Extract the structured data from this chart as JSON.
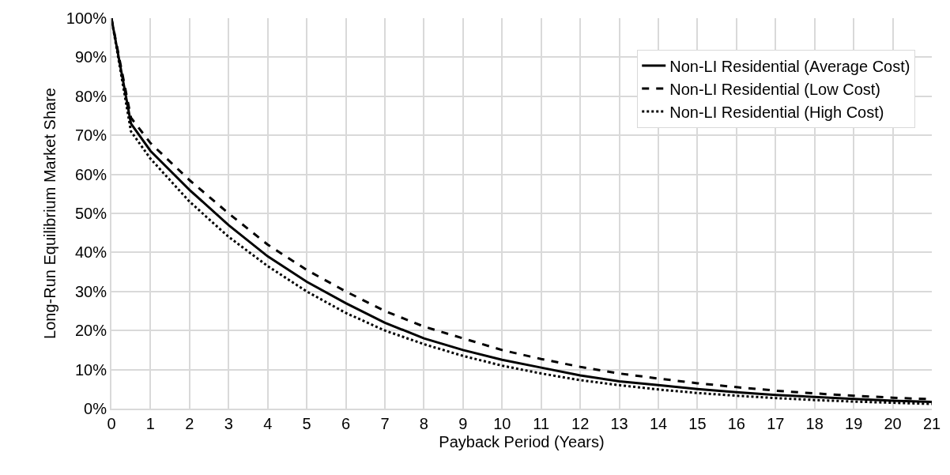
{
  "chart_data": {
    "type": "line",
    "xlabel": "Payback Period (Years)",
    "ylabel": "Long-Run Equilibrium Market Share",
    "x": [
      0,
      0.5,
      1,
      2,
      3,
      4,
      5,
      6,
      7,
      8,
      9,
      10,
      11,
      12,
      13,
      14,
      15,
      16,
      17,
      18,
      19,
      20,
      21
    ],
    "series": [
      {
        "name": "Non-LI Residential (Average Cost)",
        "color": "#000000",
        "line_style": "solid",
        "values": [
          100,
          73,
          66,
          56,
          47,
          39,
          32.5,
          27,
          22,
          18,
          15,
          12.5,
          10.5,
          8.5,
          7,
          6,
          5,
          4.2,
          3.5,
          3,
          2.5,
          2,
          1.7
        ]
      },
      {
        "name": "Non-LI Residential (Low Cost)",
        "color": "#000000",
        "line_style": "dashed",
        "values": [
          100,
          74.5,
          68,
          58.5,
          50,
          42,
          35.5,
          30,
          25,
          21,
          18,
          15,
          12.7,
          10.7,
          9,
          7.7,
          6.5,
          5.5,
          4.6,
          3.9,
          3.3,
          2.8,
          2.4
        ]
      },
      {
        "name": "Non-LI Residential (High Cost)",
        "color": "#000000",
        "line_style": "dotted",
        "values": [
          100,
          71,
          64,
          53,
          44,
          36.5,
          30,
          24.5,
          20,
          16.5,
          13.5,
          11,
          9,
          7.3,
          6,
          4.9,
          4,
          3.3,
          2.7,
          2.2,
          1.8,
          1.5,
          1.2
        ]
      }
    ],
    "xlim": [
      0,
      21
    ],
    "xticks": [
      0,
      1,
      2,
      3,
      4,
      5,
      6,
      7,
      8,
      9,
      10,
      11,
      12,
      13,
      14,
      15,
      16,
      17,
      18,
      19,
      20,
      21
    ],
    "ylim": [
      0,
      100
    ],
    "yticks": [
      {
        "value": 0,
        "label": "0%"
      },
      {
        "value": 10,
        "label": "10%"
      },
      {
        "value": 20,
        "label": "20%"
      },
      {
        "value": 30,
        "label": "30%"
      },
      {
        "value": 40,
        "label": "40%"
      },
      {
        "value": 50,
        "label": "50%"
      },
      {
        "value": 60,
        "label": "60%"
      },
      {
        "value": 70,
        "label": "70%"
      },
      {
        "value": 80,
        "label": "80%"
      },
      {
        "value": 90,
        "label": "90%"
      },
      {
        "value": 100,
        "label": "100%"
      }
    ],
    "grid": true,
    "legend": "top right",
    "marker": "none"
  }
}
